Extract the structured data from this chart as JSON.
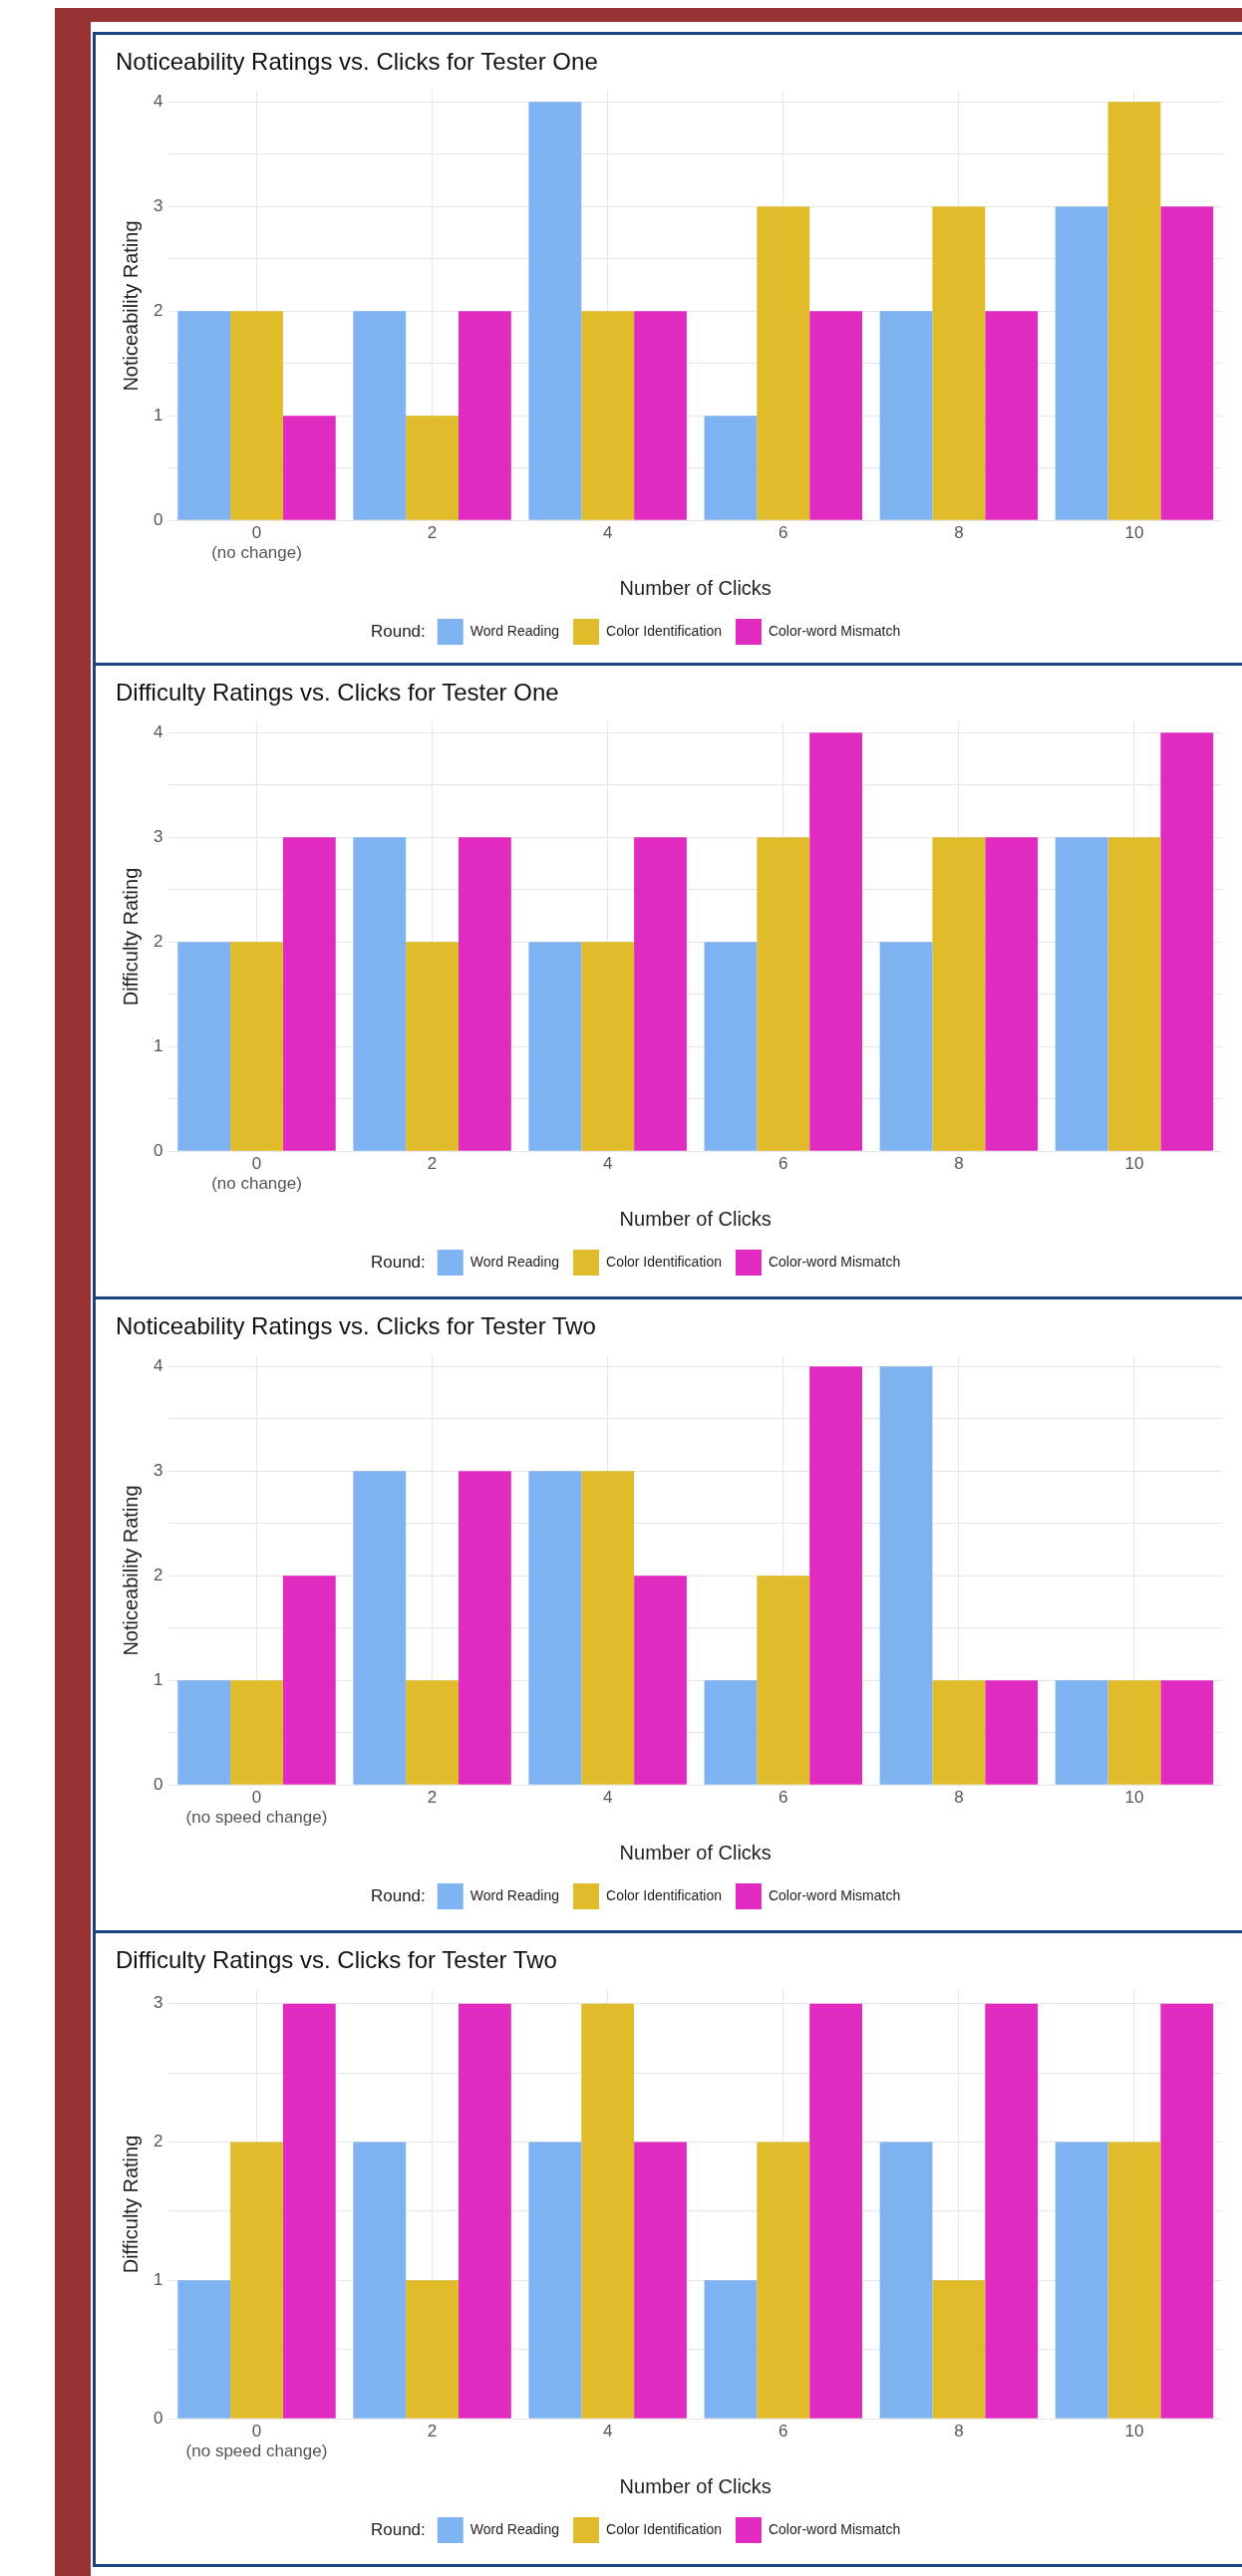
{
  "chart_data": [
    {
      "type": "bar",
      "title": "Noticeability Ratings vs. Clicks for Tester One",
      "xlabel": "Number of Clicks",
      "ylabel": "Noticeability Rating",
      "legend_title": "Round:",
      "legend": "bottom",
      "grid": true,
      "categories": [
        "0\n(no change)",
        "2",
        "4",
        "6",
        "8",
        "10"
      ],
      "ylim": [
        0,
        4.1
      ],
      "yticks": [
        0,
        {
          "value": 0.5,
          "label": null
        },
        1,
        {
          "value": 1.5,
          "label": null
        },
        2,
        {
          "value": 2.5,
          "label": null
        },
        3,
        {
          "value": 3.5,
          "label": null
        },
        4
      ],
      "series": [
        {
          "name": "Word Reading",
          "color": "#7fb2f0",
          "values": [
            2,
            2,
            4,
            1,
            2,
            3
          ]
        },
        {
          "name": "Color Identification",
          "color": "#e0bb2a",
          "values": [
            2,
            1,
            2,
            3,
            3,
            4
          ]
        },
        {
          "name": "Color-word Mismatch",
          "color": "#e02ac0",
          "values": [
            1,
            2,
            2,
            2,
            2,
            3
          ]
        }
      ]
    },
    {
      "type": "bar",
      "title": "Difficulty Ratings vs. Clicks for Tester One",
      "xlabel": "Number of Clicks",
      "ylabel": "Difficulty Rating",
      "legend_title": "Round:",
      "legend": "bottom",
      "grid": true,
      "categories": [
        "0\n(no change)",
        "2",
        "4",
        "6",
        "8",
        "10"
      ],
      "ylim": [
        0,
        4.1
      ],
      "yticks": [
        0,
        {
          "value": 0.5,
          "label": null
        },
        1,
        {
          "value": 1.5,
          "label": null
        },
        2,
        {
          "value": 2.5,
          "label": null
        },
        3,
        {
          "value": 3.5,
          "label": null
        },
        4
      ],
      "series": [
        {
          "name": "Word Reading",
          "color": "#7fb2f0",
          "values": [
            2,
            3,
            2,
            2,
            2,
            3
          ]
        },
        {
          "name": "Color Identification",
          "color": "#e0bb2a",
          "values": [
            2,
            2,
            2,
            3,
            3,
            3
          ]
        },
        {
          "name": "Color-word Mismatch",
          "color": "#e02ac0",
          "values": [
            3,
            3,
            3,
            4,
            3,
            4
          ]
        }
      ]
    },
    {
      "type": "bar",
      "title": "Noticeability Ratings vs. Clicks for Tester Two",
      "xlabel": "Number of Clicks",
      "ylabel": "Noticeability Rating",
      "legend_title": "Round:",
      "legend": "bottom",
      "grid": true,
      "categories": [
        "0\n(no speed change)",
        "2",
        "4",
        "6",
        "8",
        "10"
      ],
      "ylim": [
        0,
        4.1
      ],
      "yticks": [
        0,
        {
          "value": 0.5,
          "label": null
        },
        1,
        {
          "value": 1.5,
          "label": null
        },
        2,
        {
          "value": 2.5,
          "label": null
        },
        3,
        {
          "value": 3.5,
          "label": null
        },
        4
      ],
      "series": [
        {
          "name": "Word Reading",
          "color": "#7fb2f0",
          "values": [
            1,
            3,
            3,
            1,
            4,
            1
          ]
        },
        {
          "name": "Color Identification",
          "color": "#e0bb2a",
          "values": [
            1,
            1,
            3,
            2,
            1,
            1
          ]
        },
        {
          "name": "Color-word Mismatch",
          "color": "#e02ac0",
          "values": [
            2,
            3,
            2,
            4,
            1,
            1
          ]
        }
      ]
    },
    {
      "type": "bar",
      "title": "Difficulty Ratings vs. Clicks for Tester Two",
      "xlabel": "Number of Clicks",
      "ylabel": "Difficulty Rating",
      "legend_title": "Round:",
      "legend": "bottom",
      "grid": true,
      "categories": [
        "0\n(no speed change)",
        "2",
        "4",
        "6",
        "8",
        "10"
      ],
      "ylim": [
        0,
        3.1
      ],
      "yticks": [
        0,
        {
          "value": 0.5,
          "label": null
        },
        1,
        {
          "value": 1.5,
          "label": null
        },
        2,
        {
          "value": 2.5,
          "label": null
        },
        3
      ],
      "series": [
        {
          "name": "Word Reading",
          "color": "#7fb2f0",
          "values": [
            1,
            2,
            2,
            1,
            2,
            2
          ]
        },
        {
          "name": "Color Identification",
          "color": "#e0bb2a",
          "values": [
            2,
            1,
            3,
            2,
            1,
            2
          ]
        },
        {
          "name": "Color-word Mismatch",
          "color": "#e02ac0",
          "values": [
            3,
            3,
            2,
            3,
            3,
            3
          ]
        }
      ]
    }
  ]
}
